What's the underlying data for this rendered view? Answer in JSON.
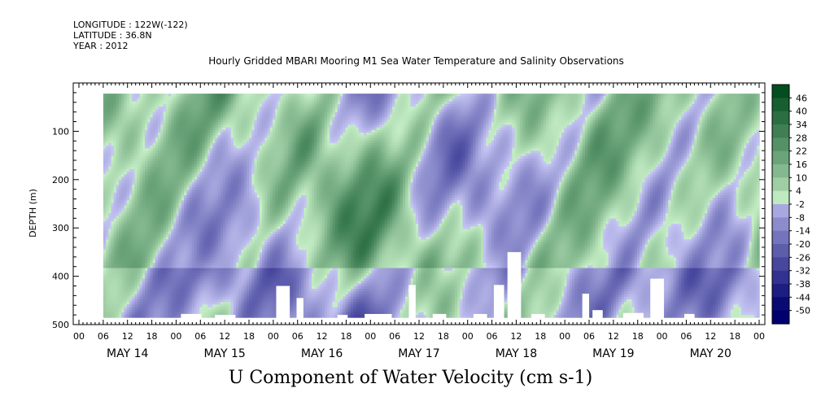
{
  "meta": {
    "longitude": "LONGITUDE : 122W(-122)",
    "latitude": "LATITUDE : 36.8N",
    "year": "YEAR : 2012"
  },
  "title": "Hourly Gridded MBARI Mooring M1 Sea Water Temperature and Salinity Observations",
  "units_title": "U Component of Water Velocity (cm s-1)",
  "colors": {
    "negative_strong": "#00006e",
    "negative_light": "#c8c8f5",
    "positive_light": "#c8f0c8",
    "positive_strong": "#004b1e",
    "nodata": "#ffffff"
  },
  "chart_data": {
    "type": "heatmap",
    "title": "Hourly Gridded MBARI Mooring M1 Sea Water Temperature and Salinity Observations",
    "xlabel": "",
    "ylabel": "DEPTH (m)",
    "y_inverted": true,
    "ylim": [
      0,
      500
    ],
    "y_ticks": [
      100,
      200,
      300,
      400,
      500
    ],
    "y_tick_labels": [
      "100",
      "200",
      "300",
      "400",
      "500"
    ],
    "x_hour_ticks": [
      "00",
      "06",
      "12",
      "18",
      "00",
      "06",
      "12",
      "18",
      "00",
      "06",
      "12",
      "18",
      "00",
      "06",
      "12",
      "18",
      "00",
      "06",
      "12",
      "18",
      "00",
      "06",
      "12",
      "18",
      "00",
      "06",
      "12",
      "18",
      "00"
    ],
    "x_day_labels": [
      "MAY 14",
      "MAY 15",
      "MAY 16",
      "MAY 17",
      "MAY 18",
      "MAY 19",
      "MAY 20"
    ],
    "x_range_hours": [
      0,
      168
    ],
    "colorbar_levels": [
      "46",
      "40",
      "34",
      "28",
      "22",
      "16",
      "10",
      "4",
      "-2",
      "-8",
      "-14",
      "-20",
      "-26",
      "-32",
      "-38",
      "-44",
      "-50"
    ],
    "value_range": [
      -50,
      50
    ],
    "units": "cm s-1"
  }
}
